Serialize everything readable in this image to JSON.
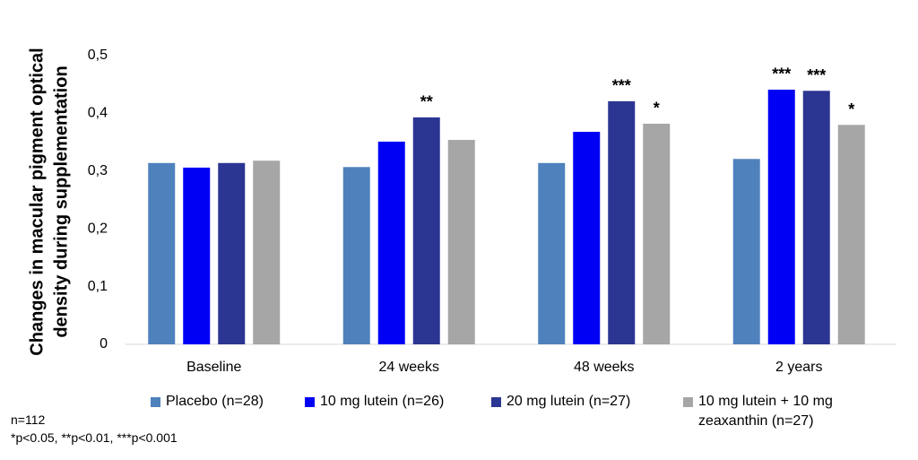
{
  "chart_data": {
    "type": "bar",
    "y_label": [
      "Changes in macular pigment optical",
      "density during supplementation"
    ],
    "categories": [
      "Baseline",
      "24 weeks",
      "48 weeks",
      "2 years"
    ],
    "series": [
      {
        "name": "Placebo (n=28)",
        "color": "#4f81bd",
        "values": [
          0.314,
          0.307,
          0.314,
          0.321
        ],
        "significance": [
          null,
          null,
          null,
          null
        ]
      },
      {
        "name": "10 mg lutein (n=26)",
        "color": "#0000f5",
        "values": [
          0.306,
          0.351,
          0.368,
          0.441
        ],
        "significance": [
          null,
          null,
          null,
          "***"
        ]
      },
      {
        "name": "20 mg lutein (n=27)",
        "color": "#2b3592",
        "values": [
          0.314,
          0.393,
          0.421,
          0.439
        ],
        "significance": [
          null,
          "**",
          "***",
          "***"
        ]
      },
      {
        "name": "10 mg lutein + 10 mg zeaxanthin (n=27)",
        "color": "#a6a6a6",
        "values": [
          0.318,
          0.354,
          0.382,
          0.38
        ],
        "significance": [
          null,
          null,
          "*",
          "*"
        ]
      }
    ],
    "ylim": [
      0,
      0.5
    ],
    "yticks": [
      0,
      {
        "value": 0.1,
        "label": "0,1"
      },
      {
        "value": 0.2,
        "label": "0,2"
      },
      {
        "value": 0.3,
        "label": "0,3"
      },
      {
        "value": 0.4,
        "label": "0,4"
      },
      {
        "value": 0.5,
        "label": "0,5"
      }
    ],
    "grid": false,
    "footnotes": [
      "n=112",
      "*p<0.05, **p<0.01, ***p<0.001"
    ]
  }
}
